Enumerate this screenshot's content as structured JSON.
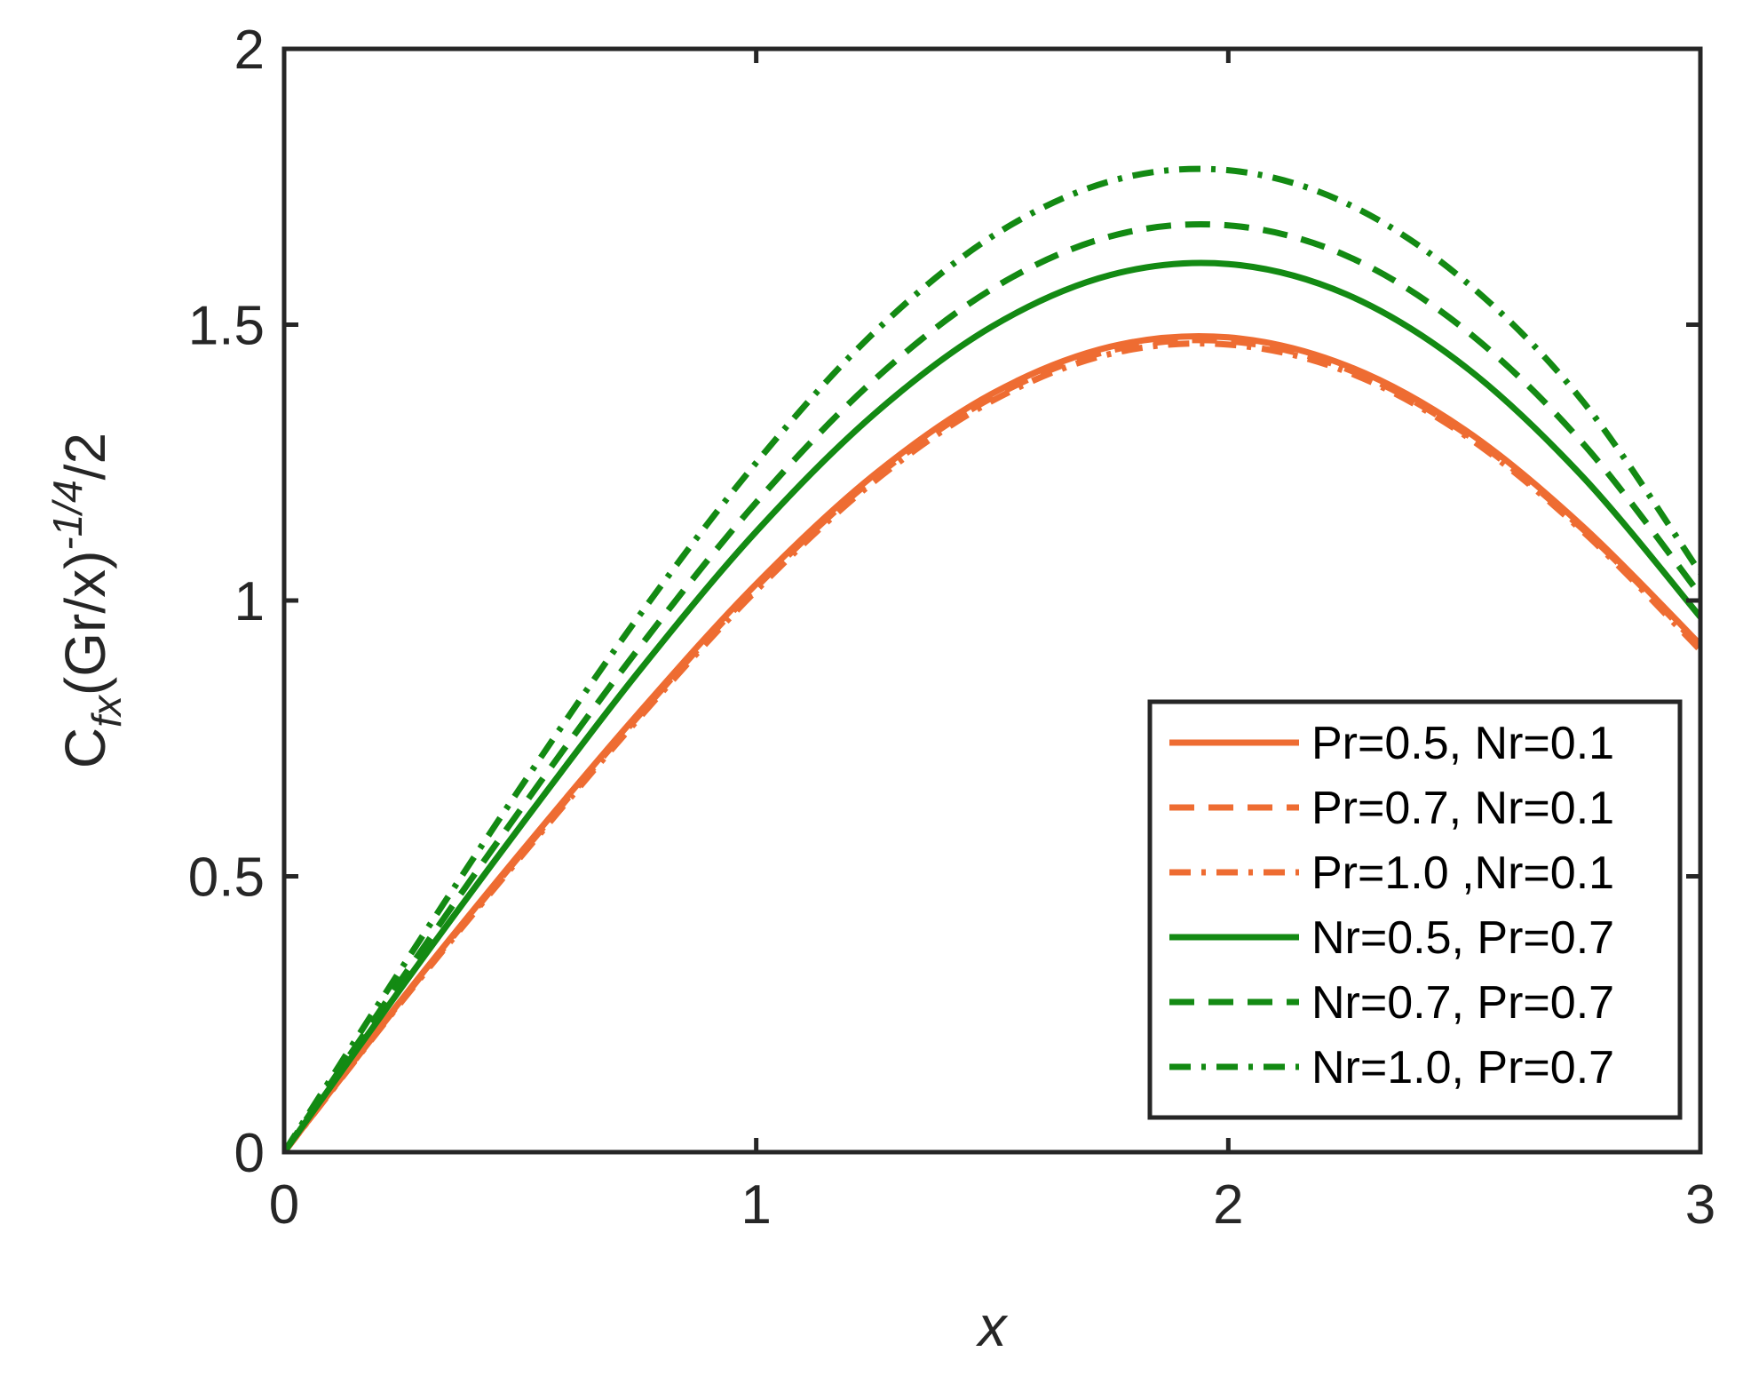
{
  "chart_data": {
    "type": "line",
    "title": "",
    "xlabel": "x",
    "ylabel": {
      "base": "C",
      "sub": "fx",
      "mid": "(Gr/x)",
      "sup": "-1/4",
      "tail": "/2"
    },
    "xlim": [
      0,
      3
    ],
    "ylim": [
      0,
      2
    ],
    "xticks": [
      0,
      1,
      2,
      3
    ],
    "yticks": [
      0,
      0.5,
      1,
      1.5,
      2
    ],
    "xtick_labels": [
      "0",
      "1",
      "2",
      "3"
    ],
    "ytick_labels": [
      "0",
      "0.5",
      "1",
      "1.5",
      "2"
    ],
    "grid": false,
    "legend_position": "lower-right",
    "x": [
      0,
      0.25,
      0.5,
      0.75,
      1.0,
      1.25,
      1.5,
      1.75,
      2.0,
      2.25,
      2.5,
      2.75,
      3.0
    ],
    "series": [
      {
        "name": "Pr=0.5, Nr=0.1",
        "color": "#ee6c32",
        "dash": "solid",
        "values": [
          0,
          0.278,
          0.542,
          0.795,
          1.03,
          1.228,
          1.375,
          1.46,
          1.477,
          1.426,
          1.31,
          1.135,
          0.92
        ]
      },
      {
        "name": "Pr=0.7, Nr=0.1",
        "color": "#ee6c32",
        "dash": "dashed",
        "values": [
          0,
          0.276,
          0.538,
          0.79,
          1.024,
          1.222,
          1.368,
          1.453,
          1.47,
          1.42,
          1.304,
          1.13,
          0.915
        ]
      },
      {
        "name": "Pr=1.0 ,Nr=0.1",
        "color": "#ee6c32",
        "dash": "dashdot",
        "values": [
          0,
          0.274,
          0.534,
          0.785,
          1.018,
          1.216,
          1.362,
          1.447,
          1.464,
          1.415,
          1.3,
          1.126,
          0.91
        ]
      },
      {
        "name": "Nr=0.5, Pr=0.7",
        "color": "#138a13",
        "dash": "solid",
        "values": [
          0,
          0.3,
          0.59,
          0.87,
          1.125,
          1.338,
          1.497,
          1.59,
          1.61,
          1.555,
          1.425,
          1.225,
          0.97
        ]
      },
      {
        "name": "Nr=0.7, Pr=0.7",
        "color": "#138a13",
        "dash": "dashed",
        "values": [
          0,
          0.315,
          0.62,
          0.912,
          1.178,
          1.4,
          1.565,
          1.66,
          1.68,
          1.625,
          1.492,
          1.286,
          1.01
        ]
      },
      {
        "name": "Nr=1.0, Pr=0.7",
        "color": "#138a13",
        "dash": "dashdot",
        "values": [
          0,
          0.335,
          0.66,
          0.97,
          1.25,
          1.486,
          1.66,
          1.76,
          1.78,
          1.72,
          1.58,
          1.362,
          1.05
        ]
      }
    ]
  }
}
